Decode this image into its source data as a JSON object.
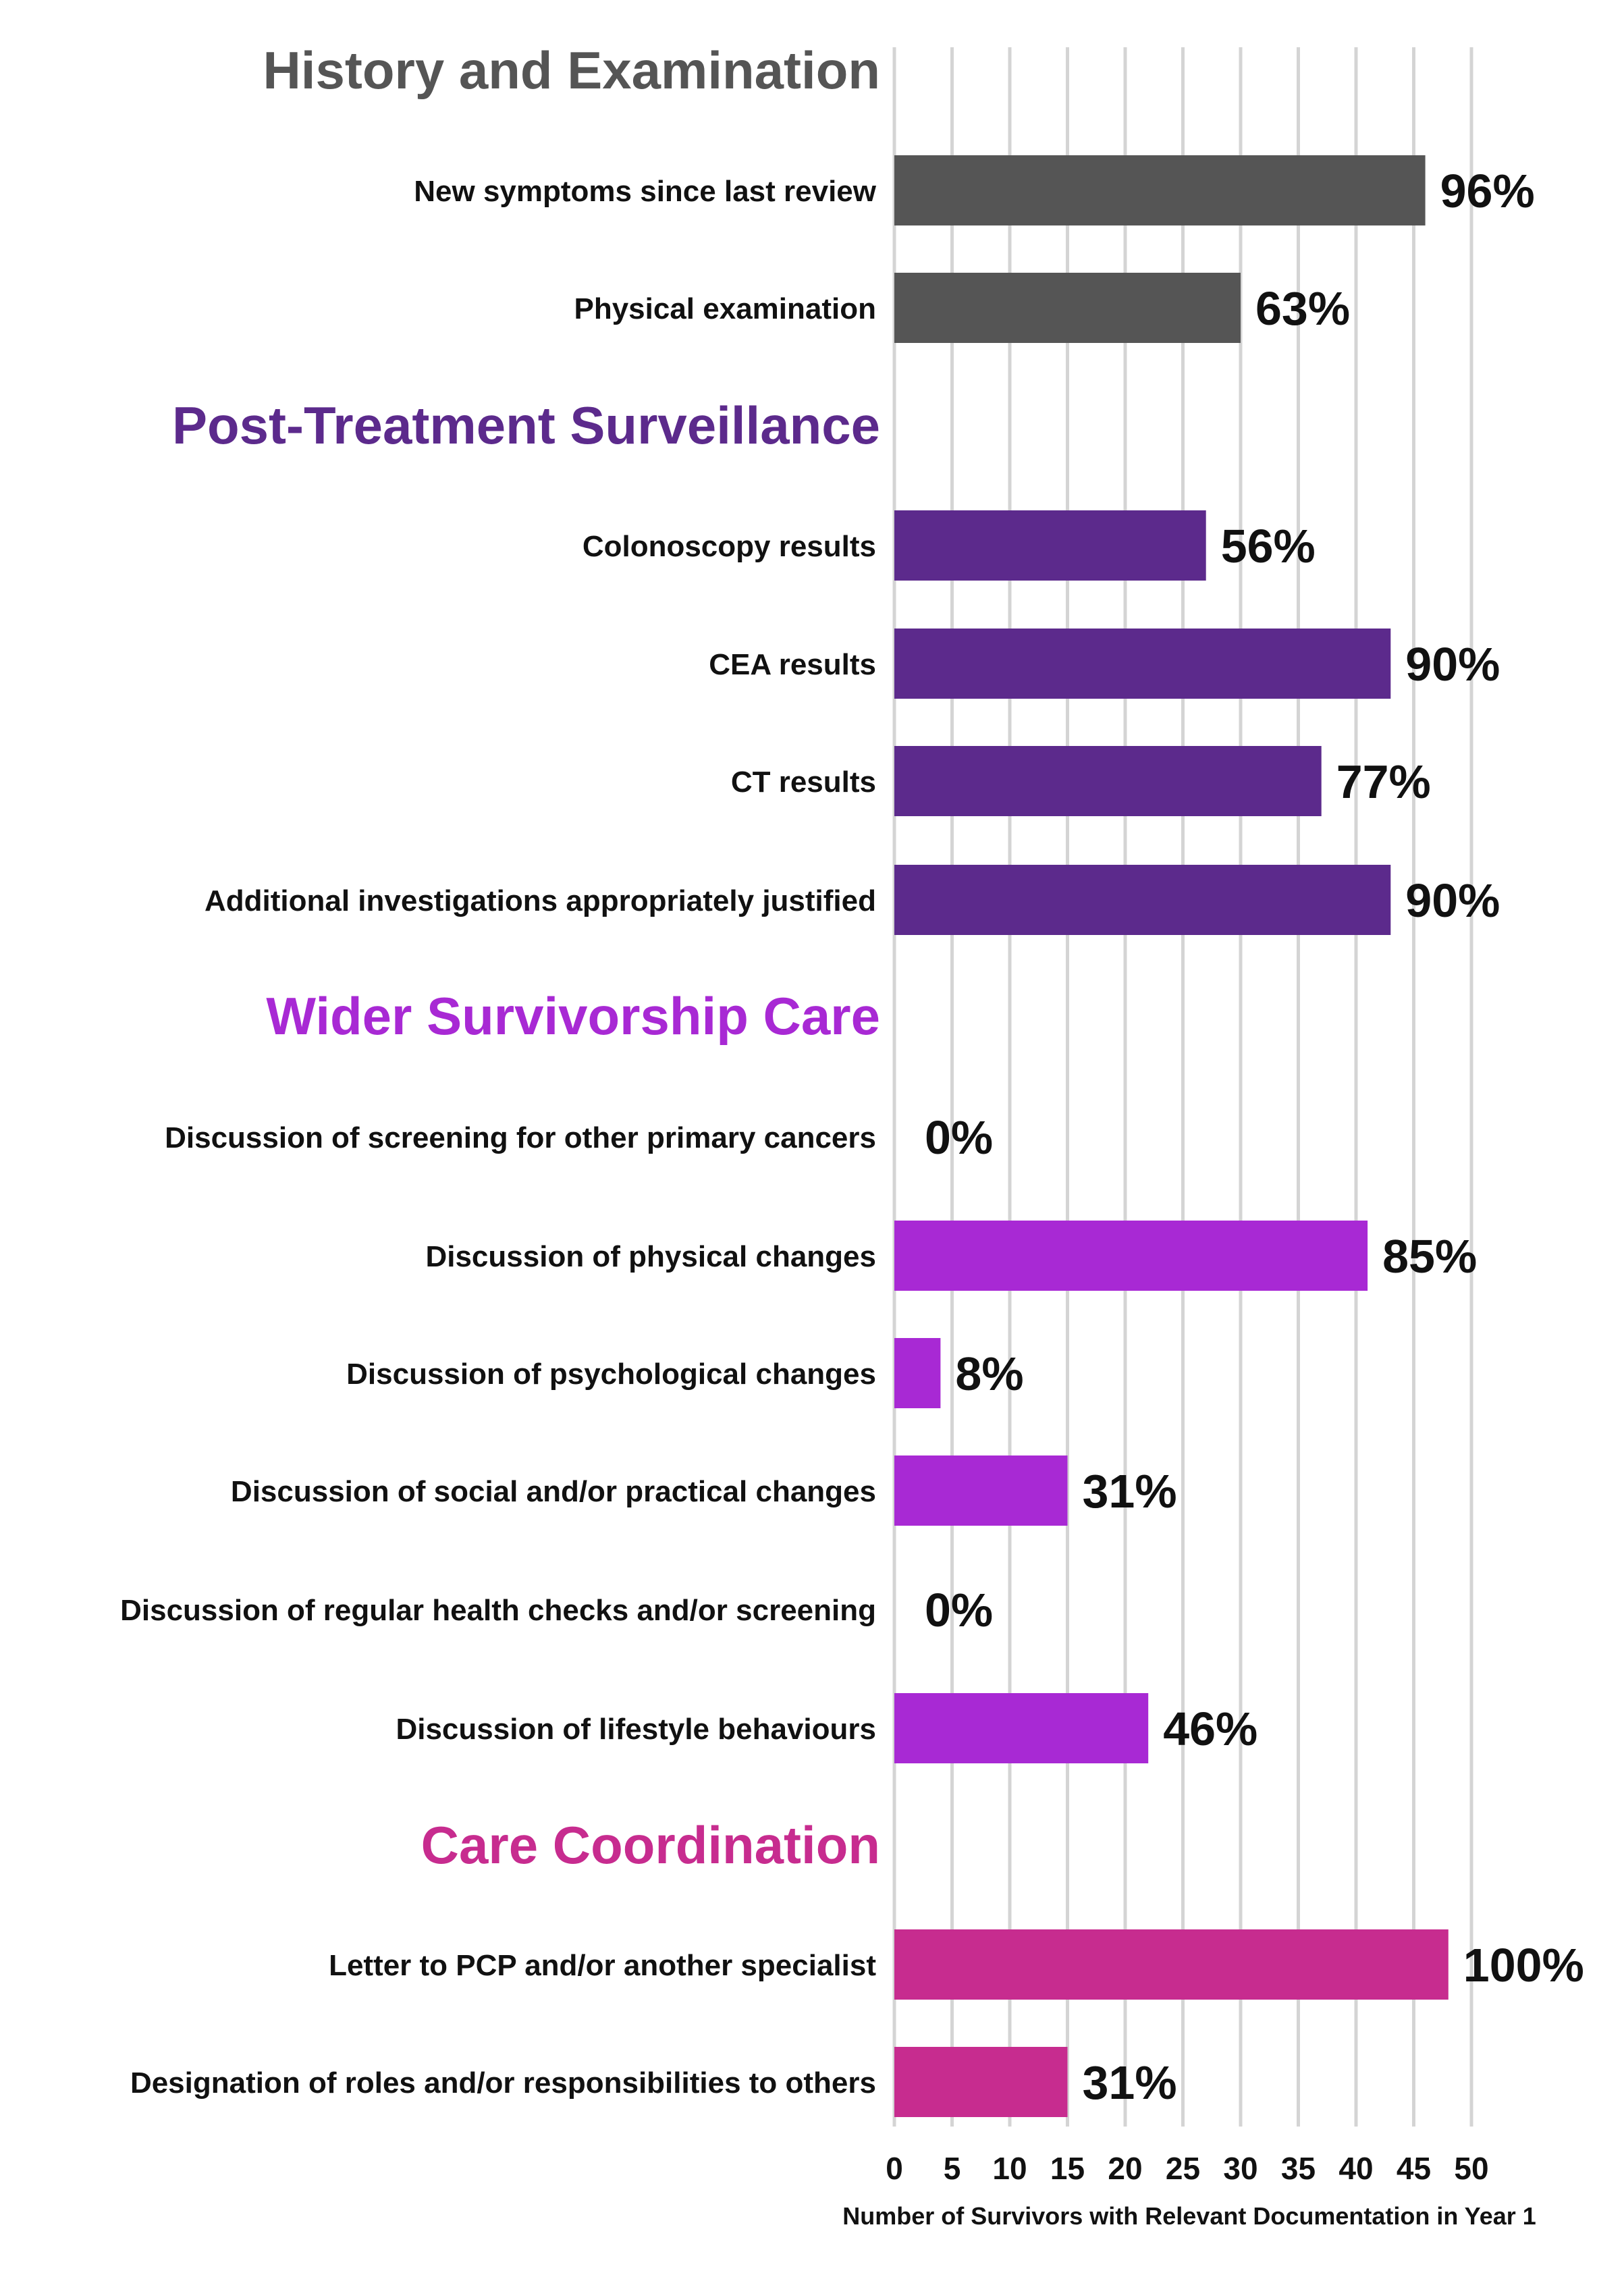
{
  "chart_data": {
    "type": "bar",
    "orientation": "horizontal",
    "xlabel": "Number of Survivors with Relevant Documentation in Year 1",
    "xlim": [
      0,
      50
    ],
    "xticks": [
      0,
      5,
      10,
      15,
      20,
      25,
      30,
      35,
      40,
      45,
      50
    ],
    "grid": true,
    "sections": [
      {
        "title": "History and Examination",
        "color": "#555555",
        "items": [
          {
            "label": "New symptoms since last review",
            "value": 46,
            "percent_label": "96%"
          },
          {
            "label": "Physical examination",
            "value": 30,
            "percent_label": "63%"
          }
        ]
      },
      {
        "title": "Post-Treatment Surveillance",
        "color": "#5c2a8c",
        "items": [
          {
            "label": "Colonoscopy results",
            "value": 27,
            "percent_label": "56%"
          },
          {
            "label": "CEA results",
            "value": 43,
            "percent_label": "90%"
          },
          {
            "label": "CT results",
            "value": 37,
            "percent_label": "77%"
          },
          {
            "label": "Additional investigations appropriately justified",
            "value": 43,
            "percent_label": "90%"
          }
        ]
      },
      {
        "title": "Wider Survivorship Care",
        "color": "#a829d4",
        "items": [
          {
            "label": "Discussion of screening for other primary cancers",
            "value": 0,
            "percent_label": "0%"
          },
          {
            "label": "Discussion of physical changes",
            "value": 41,
            "percent_label": "85%"
          },
          {
            "label": "Discussion of psychological changes",
            "value": 4,
            "percent_label": "8%"
          },
          {
            "label": "Discussion of social and/or practical changes",
            "value": 15,
            "percent_label": "31%"
          },
          {
            "label": "Discussion of regular health checks and/or screening",
            "value": 0,
            "percent_label": "0%"
          },
          {
            "label": "Discussion of lifestyle behaviours",
            "value": 22,
            "percent_label": "46%"
          }
        ]
      },
      {
        "title": "Care Coordination",
        "color": "#c72c8f",
        "items": [
          {
            "label": "Letter to PCP and/or another specialist",
            "value": 48,
            "percent_label": "100%"
          },
          {
            "label": "Designation of roles and/or responsibilities to others",
            "value": 15,
            "percent_label": "31%"
          }
        ]
      }
    ]
  }
}
